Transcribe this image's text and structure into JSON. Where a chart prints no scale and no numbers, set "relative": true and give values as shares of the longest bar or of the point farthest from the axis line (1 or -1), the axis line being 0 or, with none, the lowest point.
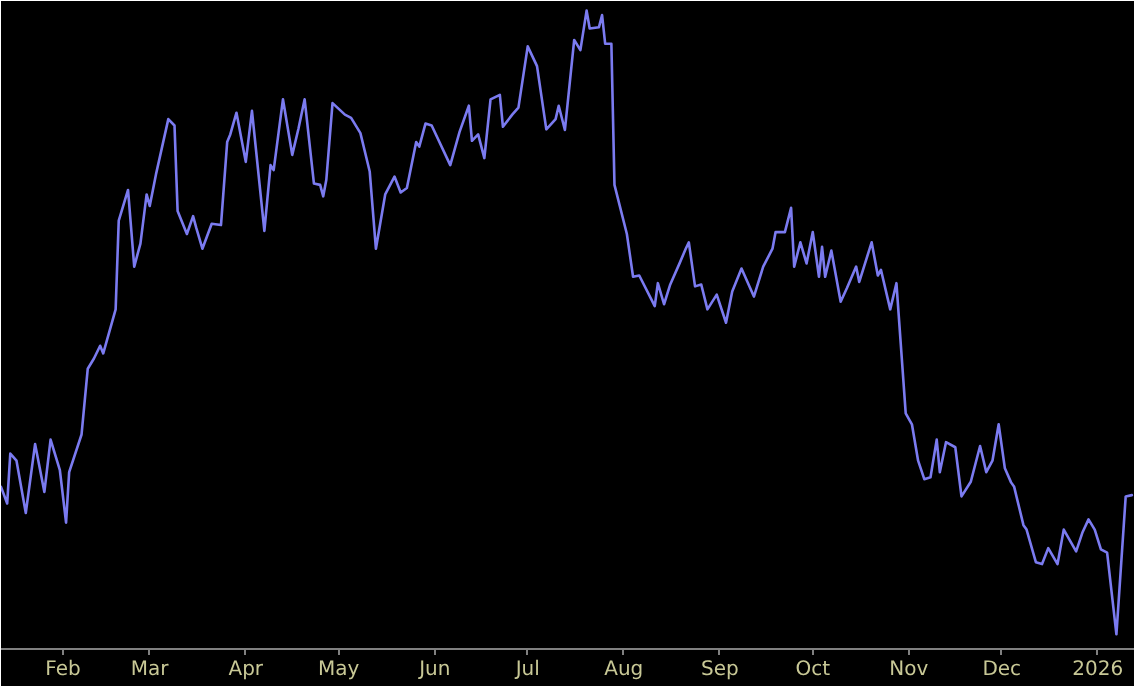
{
  "chart_data": {
    "type": "line",
    "relative": true,
    "grid": false,
    "color": "#7b7bf0",
    "marker": "none",
    "line_style": "solid",
    "x": [
      "2025-01-12",
      "2025-01-14",
      "2025-01-15",
      "2025-01-17",
      "2025-01-20",
      "2025-01-23",
      "2025-01-26",
      "2025-01-28",
      "2025-01-31",
      "2025-02-02",
      "2025-02-03",
      "2025-02-07",
      "2025-02-09",
      "2025-02-11",
      "2025-02-13",
      "2025-02-14",
      "2025-02-18",
      "2025-02-19",
      "2025-02-22",
      "2025-02-24",
      "2025-02-26",
      "2025-02-28",
      "2025-03-01",
      "2025-03-03",
      "2025-03-07",
      "2025-03-09",
      "2025-03-10",
      "2025-03-13",
      "2025-03-15",
      "2025-03-16",
      "2025-03-18",
      "2025-03-21",
      "2025-03-24",
      "2025-03-26",
      "2025-03-27",
      "2025-03-29",
      "2025-04-01",
      "2025-04-03",
      "2025-04-07",
      "2025-04-09",
      "2025-04-10",
      "2025-04-13",
      "2025-04-16",
      "2025-04-18",
      "2025-04-20",
      "2025-04-23",
      "2025-04-25",
      "2025-04-26",
      "2025-04-27",
      "2025-04-29",
      "2025-05-03",
      "2025-05-05",
      "2025-05-08",
      "2025-05-11",
      "2025-05-13",
      "2025-05-16",
      "2025-05-19",
      "2025-05-21",
      "2025-05-23",
      "2025-05-26",
      "2025-05-27",
      "2025-05-29",
      "2025-05-31",
      "2025-06-06",
      "2025-06-09",
      "2025-06-12",
      "2025-06-13",
      "2025-06-15",
      "2025-06-17",
      "2025-06-19",
      "2025-06-22",
      "2025-06-23",
      "2025-06-26",
      "2025-06-28",
      "2025-07-01",
      "2025-07-04",
      "2025-07-07",
      "2025-07-10",
      "2025-07-11",
      "2025-07-13",
      "2025-07-16",
      "2025-07-18",
      "2025-07-20",
      "2025-07-21",
      "2025-07-24",
      "2025-07-25",
      "2025-07-26",
      "2025-07-28",
      "2025-07-29",
      "2025-08-02",
      "2025-08-04",
      "2025-08-06",
      "2025-08-11",
      "2025-08-12",
      "2025-08-14",
      "2025-08-16",
      "2025-08-19",
      "2025-08-21",
      "2025-08-22",
      "2025-08-24",
      "2025-08-26",
      "2025-08-28",
      "2025-08-31",
      "2025-09-03",
      "2025-09-05",
      "2025-09-08",
      "2025-09-12",
      "2025-09-15",
      "2025-09-18",
      "2025-09-19",
      "2025-09-22",
      "2025-09-24",
      "2025-09-25",
      "2025-09-27",
      "2025-09-29",
      "2025-10-01",
      "2025-10-03",
      "2025-10-04",
      "2025-10-05",
      "2025-10-07",
      "2025-10-10",
      "2025-10-12",
      "2025-10-15",
      "2025-10-16",
      "2025-10-20",
      "2025-10-22",
      "2025-10-23",
      "2025-10-26",
      "2025-10-28",
      "2025-10-31",
      "2025-11-02",
      "2025-11-04",
      "2025-11-06",
      "2025-11-08",
      "2025-11-10",
      "2025-11-11",
      "2025-11-13",
      "2025-11-16",
      "2025-11-18",
      "2025-11-21",
      "2025-11-24",
      "2025-11-26",
      "2025-11-28",
      "2025-11-30",
      "2025-12-02",
      "2025-12-04",
      "2025-12-05",
      "2025-12-08",
      "2025-12-09",
      "2025-12-12",
      "2025-12-14",
      "2025-12-16",
      "2025-12-19",
      "2025-12-21",
      "2025-12-25",
      "2025-12-27",
      "2025-12-29",
      "2025-12-31",
      "2026-01-02",
      "2026-01-04",
      "2026-01-07",
      "2026-01-10",
      "2026-01-12"
    ],
    "values": [
      0.254,
      0.228,
      0.306,
      0.295,
      0.213,
      0.321,
      0.246,
      0.328,
      0.28,
      0.198,
      0.277,
      0.336,
      0.439,
      0.455,
      0.475,
      0.463,
      0.532,
      0.671,
      0.719,
      0.599,
      0.635,
      0.712,
      0.694,
      0.743,
      0.83,
      0.82,
      0.686,
      0.65,
      0.678,
      0.66,
      0.627,
      0.666,
      0.664,
      0.794,
      0.806,
      0.84,
      0.763,
      0.843,
      0.655,
      0.758,
      0.75,
      0.861,
      0.774,
      0.815,
      0.861,
      0.729,
      0.727,
      0.709,
      0.735,
      0.855,
      0.837,
      0.832,
      0.808,
      0.748,
      0.627,
      0.712,
      0.74,
      0.715,
      0.722,
      0.794,
      0.787,
      0.823,
      0.82,
      0.758,
      0.81,
      0.851,
      0.796,
      0.806,
      0.769,
      0.861,
      0.868,
      0.818,
      0.837,
      0.848,
      0.944,
      0.913,
      0.814,
      0.83,
      0.851,
      0.813,
      0.954,
      0.938,
      1.0,
      0.972,
      0.974,
      0.993,
      0.948,
      0.948,
      0.727,
      0.65,
      0.583,
      0.585,
      0.537,
      0.573,
      0.54,
      0.571,
      0.604,
      0.627,
      0.637,
      0.568,
      0.571,
      0.532,
      0.555,
      0.511,
      0.56,
      0.596,
      0.552,
      0.599,
      0.627,
      0.653,
      0.653,
      0.691,
      0.599,
      0.637,
      0.604,
      0.653,
      0.583,
      0.63,
      0.583,
      0.624,
      0.544,
      0.565,
      0.599,
      0.575,
      0.637,
      0.585,
      0.594,
      0.532,
      0.573,
      0.369,
      0.352,
      0.295,
      0.266,
      0.269,
      0.328,
      0.277,
      0.324,
      0.316,
      0.239,
      0.262,
      0.318,
      0.277,
      0.295,
      0.352,
      0.283,
      0.261,
      0.254,
      0.194,
      0.187,
      0.136,
      0.133,
      0.158,
      0.133,
      0.187,
      0.153,
      0.182,
      0.203,
      0.187,
      0.156,
      0.151,
      0.023,
      0.239,
      0.241
    ],
    "xlim": [
      "2025-01-12",
      "2026-01-13"
    ],
    "xticks": [
      {
        "value": "2025-02-01",
        "label": "Feb"
      },
      {
        "value": "2025-03-01",
        "label": "Mar"
      },
      {
        "value": "2025-04-01",
        "label": "Apr"
      },
      {
        "value": "2025-05-01",
        "label": "May"
      },
      {
        "value": "2025-06-01",
        "label": "Jun"
      },
      {
        "value": "2025-07-01",
        "label": "Jul"
      },
      {
        "value": "2025-08-01",
        "label": "Aug"
      },
      {
        "value": "2025-09-01",
        "label": "Sep"
      },
      {
        "value": "2025-10-01",
        "label": "Oct"
      },
      {
        "value": "2025-11-01",
        "label": "Nov"
      },
      {
        "value": "2025-12-01",
        "label": "Dec"
      },
      {
        "value": "2026-01-01",
        "label": "2026"
      }
    ]
  }
}
